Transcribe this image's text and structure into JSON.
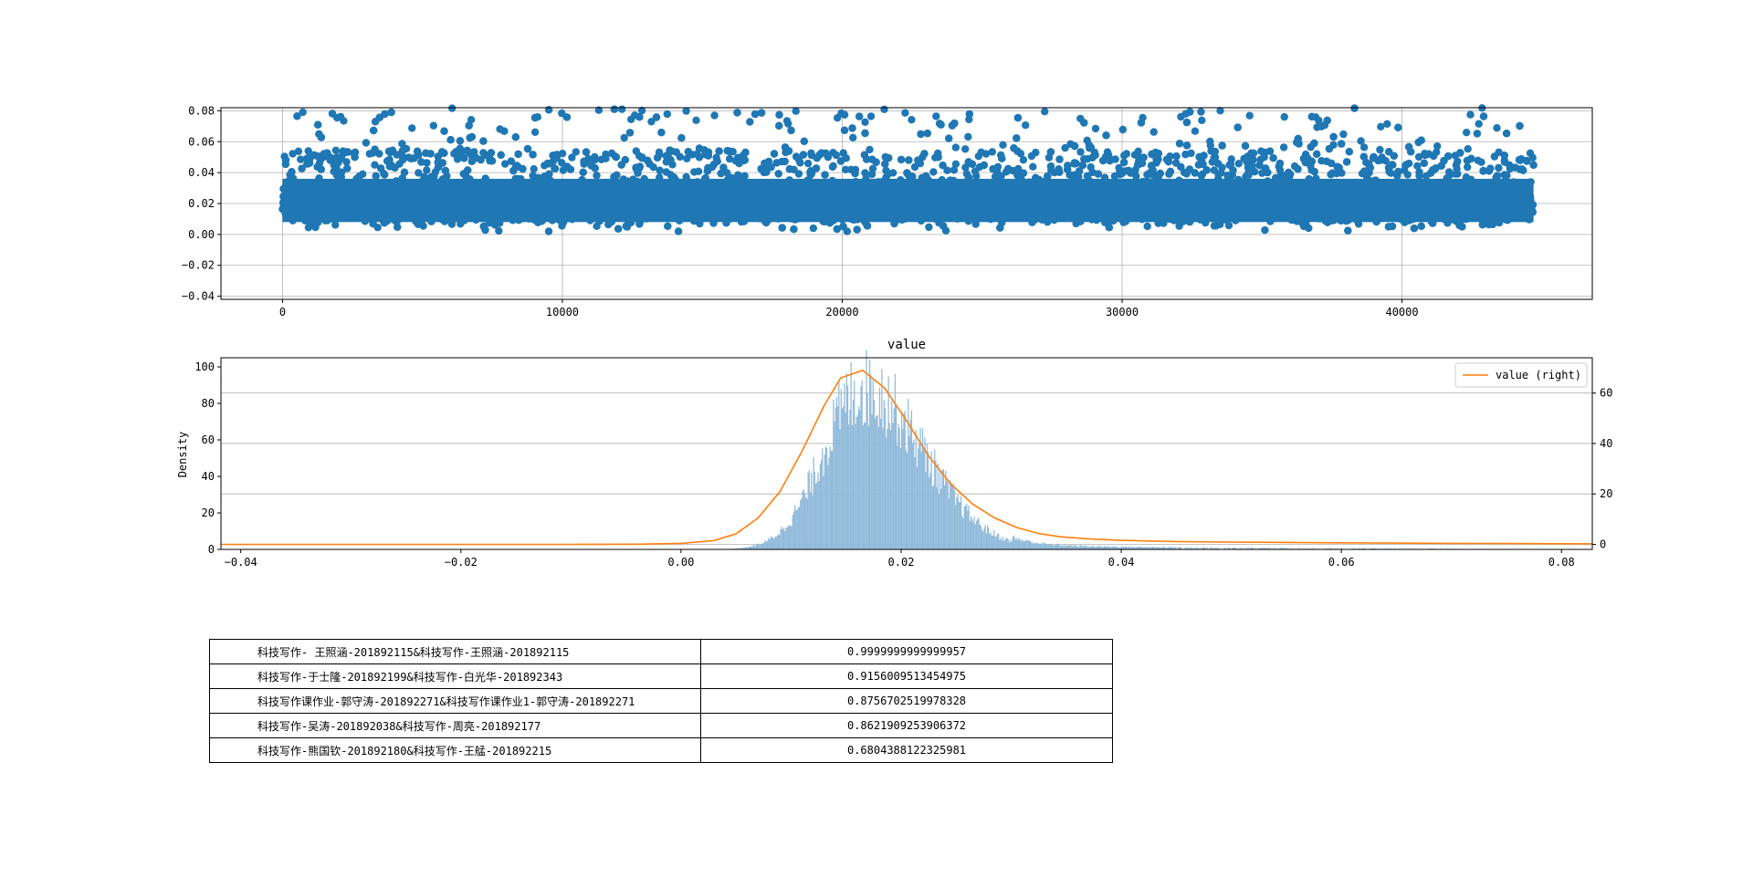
{
  "chart_data": [
    {
      "type": "scatter",
      "title": "",
      "xlabel": "",
      "ylabel": "",
      "xlim": [
        -2200,
        46800
      ],
      "ylim": [
        -0.042,
        0.082
      ],
      "xticks": [
        0,
        10000,
        20000,
        30000,
        40000
      ],
      "xtick_labels": [
        "0",
        "10000",
        "20000",
        "30000",
        "40000"
      ],
      "yticks": [
        -0.04,
        -0.02,
        0.0,
        0.02,
        0.04,
        0.06,
        0.08
      ],
      "ytick_labels": [
        "−0.04",
        "−0.02",
        "0.00",
        "0.02",
        "0.04",
        "0.06",
        "0.08"
      ],
      "grid": true,
      "point_color": "#1f77b4",
      "n_points": 44700,
      "distribution": {
        "median": 0.017,
        "dense_band": [
          0.005,
          0.04
        ],
        "sparse_max": 0.082
      }
    },
    {
      "type": "bar",
      "subtype": "histogram+kde",
      "title": "value",
      "xlabel": "",
      "ylabel": "Density",
      "xlim": [
        -0.0418,
        0.0828
      ],
      "ylim": [
        0,
        105
      ],
      "y2lim": [
        -2,
        74
      ],
      "xticks": [
        -0.04,
        -0.02,
        0.0,
        0.02,
        0.04,
        0.06,
        0.08
      ],
      "xtick_labels": [
        "−0.04",
        "−0.02",
        "0.00",
        "0.02",
        "0.04",
        "0.06",
        "0.08"
      ],
      "yticks": [
        0,
        20,
        40,
        60,
        80,
        100
      ],
      "ytick_labels": [
        "0",
        "20",
        "40",
        "60",
        "80",
        "100"
      ],
      "y2ticks": [
        0,
        20,
        40,
        60
      ],
      "y2tick_labels": [
        "0",
        "20",
        "40",
        "60"
      ],
      "grid": true,
      "hist_color": "#8fb9da",
      "kde_color": "#ff7f0e",
      "legend": {
        "placement": "top-right",
        "entries": [
          "value (right)"
        ]
      },
      "kde": {
        "x": [
          -0.0418,
          -0.03,
          -0.02,
          -0.01,
          -0.004,
          0.0,
          0.003,
          0.005,
          0.007,
          0.009,
          0.011,
          0.013,
          0.0145,
          0.0165,
          0.0185,
          0.0205,
          0.0225,
          0.0245,
          0.0265,
          0.0285,
          0.0305,
          0.0325,
          0.0345,
          0.037,
          0.04,
          0.045,
          0.05,
          0.06,
          0.07,
          0.0828
        ],
        "y": [
          0,
          0,
          0,
          0,
          0.05,
          0.4,
          1.5,
          4.2,
          10.5,
          21,
          37,
          55,
          66,
          69,
          62,
          49,
          35,
          24,
          16,
          10.5,
          6.7,
          4.3,
          3.0,
          2.2,
          1.6,
          1.1,
          0.9,
          0.6,
          0.4,
          0.2
        ]
      },
      "hist_shape": {
        "peak_x": 0.0165,
        "peak_density": 91,
        "range": [
          0.002,
          0.0825
        ]
      }
    }
  ],
  "table": {
    "rows": [
      {
        "pair": "科技写作- 王照涵-201892115&科技写作-王照涵-201892115",
        "score": "0.9999999999999957"
      },
      {
        "pair": "科技写作-于士隆-201892199&科技写作-白光华-201892343",
        "score": "0.9156009513454975"
      },
      {
        "pair": "科技写作课作业-郭守涛-201892271&科技写作课作业1-郭守涛-201892271",
        "score": "0.8756702519978328"
      },
      {
        "pair": "科技写作-吴涛-201892038&科技写作-周亮-201892177",
        "score": "0.8621909253906372"
      },
      {
        "pair": "科技写作-熊国钦-201892180&科技写作-王艋-201892215",
        "score": "0.6804388122325981"
      }
    ]
  }
}
